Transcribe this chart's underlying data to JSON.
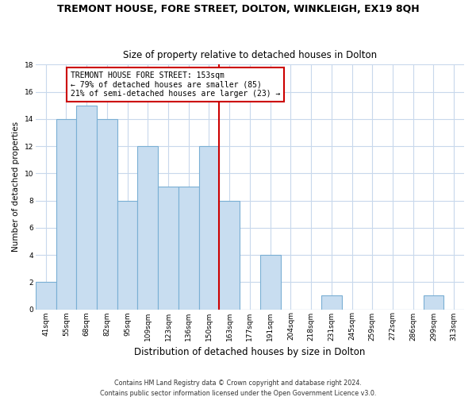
{
  "title": "TREMONT HOUSE, FORE STREET, DOLTON, WINKLEIGH, EX19 8QH",
  "subtitle": "Size of property relative to detached houses in Dolton",
  "xlabel": "Distribution of detached houses by size in Dolton",
  "ylabel": "Number of detached properties",
  "bin_labels": [
    "41sqm",
    "55sqm",
    "68sqm",
    "82sqm",
    "95sqm",
    "109sqm",
    "123sqm",
    "136sqm",
    "150sqm",
    "163sqm",
    "177sqm",
    "191sqm",
    "204sqm",
    "218sqm",
    "231sqm",
    "245sqm",
    "259sqm",
    "272sqm",
    "286sqm",
    "299sqm",
    "313sqm"
  ],
  "counts": [
    2,
    14,
    15,
    14,
    8,
    12,
    9,
    9,
    12,
    8,
    0,
    4,
    0,
    0,
    1,
    0,
    0,
    0,
    0,
    1,
    0
  ],
  "bar_color": "#c8ddf0",
  "bar_edge_color": "#7aafd4",
  "vline_x_bin": 8,
  "vline_color": "#cc0000",
  "annotation_title": "TREMONT HOUSE FORE STREET: 153sqm",
  "annotation_line1": "← 79% of detached houses are smaller (85)",
  "annotation_line2": "21% of semi-detached houses are larger (23) →",
  "annotation_box_facecolor": "#ffffff",
  "annotation_box_edgecolor": "#cc0000",
  "ylim": [
    0,
    18
  ],
  "yticks": [
    0,
    2,
    4,
    6,
    8,
    10,
    12,
    14,
    16,
    18
  ],
  "grid_color": "#c8d8ec",
  "background_color": "#ffffff",
  "footer1": "Contains HM Land Registry data © Crown copyright and database right 2024.",
  "footer2": "Contains public sector information licensed under the Open Government Licence v3.0.",
  "title_fontsize": 9,
  "subtitle_fontsize": 8.5,
  "xlabel_fontsize": 8.5,
  "ylabel_fontsize": 7.5,
  "tick_fontsize": 6.5,
  "footer_fontsize": 5.8,
  "annotation_fontsize": 7.0
}
